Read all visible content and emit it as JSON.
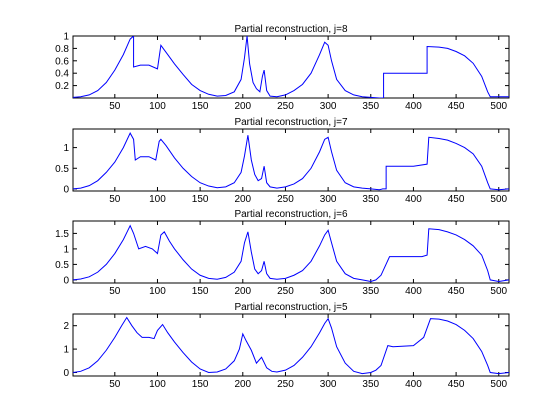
{
  "chart_data": [
    {
      "type": "line",
      "title": "Partial reconstruction, j=8",
      "xlabel": "",
      "ylabel": "",
      "xlim": [
        1,
        512
      ],
      "ylim": [
        0,
        1
      ],
      "xticks": [
        50,
        100,
        150,
        200,
        250,
        300,
        350,
        400,
        450,
        500
      ],
      "yticks": [
        0.2,
        0.4,
        0.6,
        0.8,
        1
      ],
      "ytick_labels": [
        "0.2",
        "0.4",
        "0.6",
        "0.8",
        "1"
      ],
      "grid": false,
      "color": "#0000ff",
      "x": [
        1,
        10,
        20,
        30,
        40,
        50,
        60,
        68,
        72,
        72,
        80,
        90,
        100,
        104,
        112,
        120,
        130,
        140,
        150,
        160,
        170,
        180,
        190,
        198,
        202,
        205,
        208,
        212,
        216,
        220,
        223,
        225,
        228,
        232,
        240,
        250,
        260,
        270,
        280,
        290,
        296,
        300,
        304,
        310,
        320,
        330,
        340,
        350,
        360,
        365,
        365,
        400,
        416,
        416,
        430,
        440,
        450,
        460,
        470,
        480,
        487,
        490,
        500,
        512
      ],
      "y": [
        0.01,
        0.02,
        0.05,
        0.12,
        0.25,
        0.45,
        0.7,
        0.95,
        1.0,
        0.5,
        0.53,
        0.53,
        0.47,
        0.85,
        0.7,
        0.55,
        0.38,
        0.22,
        0.12,
        0.06,
        0.03,
        0.04,
        0.1,
        0.3,
        0.65,
        1.0,
        0.55,
        0.25,
        0.15,
        0.1,
        0.35,
        0.45,
        0.12,
        0.03,
        0.02,
        0.05,
        0.12,
        0.22,
        0.4,
        0.7,
        0.9,
        0.85,
        0.6,
        0.3,
        0.12,
        0.05,
        0.02,
        0.01,
        0.0,
        0.0,
        0.4,
        0.4,
        0.4,
        0.83,
        0.82,
        0.8,
        0.75,
        0.68,
        0.56,
        0.35,
        0.1,
        0.02,
        0.02,
        0.02
      ]
    },
    {
      "type": "line",
      "title": "Partial reconstruction, j=7",
      "xlabel": "",
      "ylabel": "",
      "xlim": [
        1,
        512
      ],
      "ylim": [
        -0.05,
        1.45
      ],
      "xticks": [
        50,
        100,
        150,
        200,
        250,
        300,
        350,
        400,
        450,
        500
      ],
      "yticks": [
        0,
        0.5,
        1
      ],
      "ytick_labels": [
        "0",
        "0.5",
        "1"
      ],
      "grid": false,
      "color": "#0000ff",
      "x": [
        1,
        10,
        20,
        30,
        40,
        50,
        60,
        68,
        72,
        74,
        80,
        90,
        98,
        102,
        104,
        110,
        120,
        130,
        140,
        150,
        160,
        170,
        180,
        190,
        198,
        202,
        206,
        210,
        214,
        218,
        222,
        225,
        228,
        232,
        240,
        250,
        260,
        270,
        280,
        290,
        296,
        300,
        304,
        310,
        320,
        330,
        340,
        350,
        360,
        364,
        368,
        368,
        400,
        416,
        418,
        430,
        440,
        450,
        460,
        470,
        480,
        487,
        490,
        500,
        512
      ],
      "y": [
        0.0,
        0.02,
        0.08,
        0.2,
        0.4,
        0.65,
        1.0,
        1.35,
        1.2,
        0.7,
        0.78,
        0.78,
        0.7,
        1.15,
        1.2,
        1.05,
        0.75,
        0.5,
        0.3,
        0.15,
        0.07,
        0.03,
        0.05,
        0.15,
        0.4,
        0.8,
        1.3,
        0.7,
        0.35,
        0.2,
        0.25,
        0.55,
        0.15,
        0.05,
        0.02,
        0.05,
        0.12,
        0.25,
        0.5,
        0.9,
        1.2,
        1.25,
        0.9,
        0.45,
        0.15,
        0.05,
        0.02,
        0.0,
        -0.02,
        0.0,
        0.0,
        0.55,
        0.55,
        0.6,
        1.25,
        1.22,
        1.18,
        1.1,
        1.0,
        0.85,
        0.55,
        0.15,
        0.0,
        -0.02,
        0.0
      ]
    },
    {
      "type": "line",
      "title": "Partial reconstruction, j=6",
      "xlabel": "",
      "ylabel": "",
      "xlim": [
        1,
        512
      ],
      "ylim": [
        -0.1,
        1.9
      ],
      "xticks": [
        50,
        100,
        150,
        200,
        250,
        300,
        350,
        400,
        450,
        500
      ],
      "yticks": [
        0,
        0.5,
        1,
        1.5
      ],
      "ytick_labels": [
        "0",
        "0.5",
        "1",
        "1.5"
      ],
      "grid": false,
      "color": "#0000ff",
      "x": [
        1,
        10,
        20,
        30,
        40,
        50,
        60,
        68,
        72,
        78,
        86,
        94,
        100,
        104,
        108,
        114,
        120,
        130,
        140,
        150,
        160,
        170,
        180,
        190,
        198,
        202,
        206,
        210,
        214,
        218,
        222,
        225,
        228,
        232,
        240,
        250,
        260,
        270,
        280,
        290,
        296,
        300,
        304,
        310,
        320,
        330,
        340,
        350,
        356,
        362,
        372,
        400,
        410,
        416,
        418,
        430,
        440,
        450,
        460,
        470,
        480,
        487,
        490,
        500,
        512
      ],
      "y": [
        0.0,
        0.03,
        0.1,
        0.25,
        0.5,
        0.85,
        1.3,
        1.75,
        1.5,
        1.0,
        1.08,
        1.0,
        0.85,
        1.45,
        1.55,
        1.25,
        1.0,
        0.65,
        0.35,
        0.15,
        0.05,
        0.02,
        0.08,
        0.25,
        0.6,
        1.2,
        1.55,
        0.9,
        0.35,
        0.2,
        0.3,
        0.6,
        0.2,
        0.05,
        0.02,
        0.05,
        0.15,
        0.3,
        0.6,
        1.1,
        1.45,
        1.6,
        1.2,
        0.6,
        0.2,
        0.05,
        0.0,
        -0.05,
        0.0,
        0.15,
        0.75,
        0.75,
        0.75,
        0.8,
        1.65,
        1.62,
        1.55,
        1.45,
        1.3,
        1.1,
        0.8,
        0.3,
        0.0,
        -0.05,
        0.0
      ]
    },
    {
      "type": "line",
      "title": "Partial reconstruction, j=5",
      "xlabel": "",
      "ylabel": "",
      "xlim": [
        1,
        512
      ],
      "ylim": [
        -0.15,
        2.5
      ],
      "xticks": [
        50,
        100,
        150,
        200,
        250,
        300,
        350,
        400,
        450,
        500
      ],
      "yticks": [
        0,
        1,
        2
      ],
      "ytick_labels": [
        "0",
        "1",
        "2"
      ],
      "grid": false,
      "color": "#0000ff",
      "x": [
        1,
        10,
        20,
        30,
        40,
        50,
        58,
        64,
        70,
        76,
        82,
        90,
        96,
        100,
        106,
        112,
        120,
        130,
        140,
        150,
        160,
        170,
        180,
        190,
        196,
        200,
        204,
        210,
        216,
        222,
        228,
        234,
        240,
        250,
        260,
        270,
        280,
        290,
        296,
        300,
        304,
        310,
        320,
        330,
        340,
        350,
        356,
        362,
        370,
        376,
        400,
        412,
        420,
        430,
        440,
        450,
        460,
        470,
        480,
        487,
        490,
        500,
        512
      ],
      "y": [
        0.0,
        0.05,
        0.2,
        0.5,
        0.95,
        1.5,
        2.0,
        2.35,
        2.0,
        1.7,
        1.5,
        1.5,
        1.45,
        1.8,
        2.05,
        1.7,
        1.3,
        0.85,
        0.45,
        0.15,
        0.0,
        0.02,
        0.15,
        0.5,
        1.0,
        1.65,
        1.35,
        0.95,
        0.4,
        0.65,
        0.2,
        0.05,
        0.02,
        0.1,
        0.3,
        0.65,
        1.1,
        1.7,
        2.1,
        2.3,
        1.9,
        1.1,
        0.4,
        0.05,
        -0.05,
        0.0,
        0.1,
        0.3,
        1.15,
        1.1,
        1.15,
        1.5,
        2.3,
        2.28,
        2.2,
        2.05,
        1.8,
        1.45,
        0.9,
        0.3,
        0.0,
        -0.05,
        0.0
      ]
    }
  ]
}
